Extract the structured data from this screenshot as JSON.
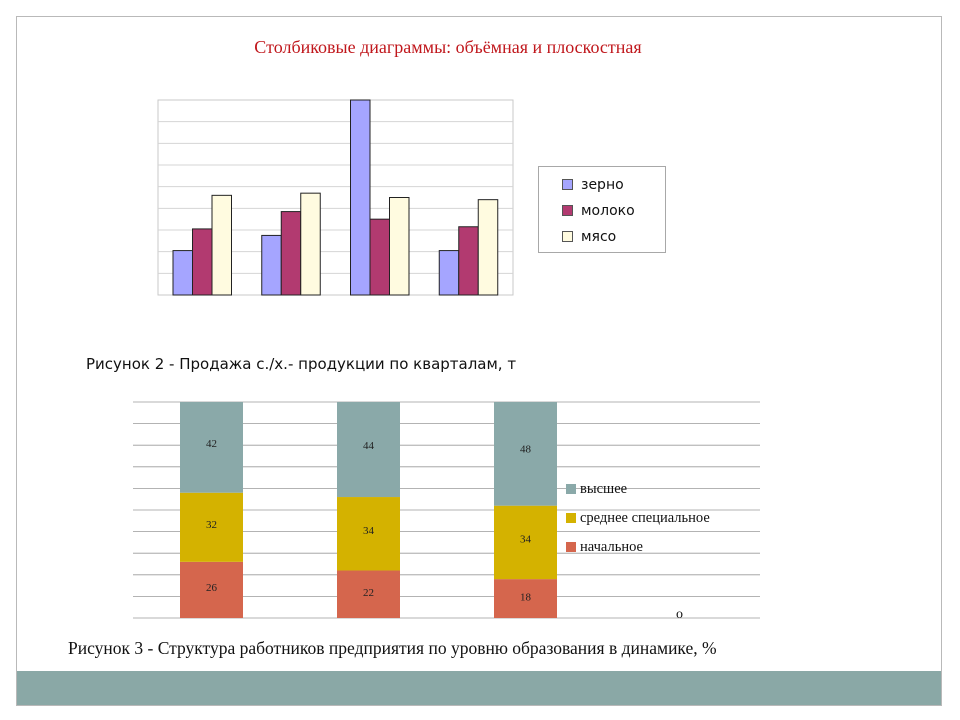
{
  "slide": {
    "title": "Столбиковые диаграммы: объёмная и плоскостная",
    "caption_2": "Рисунок 2 - Продажа с./х.- продукции по кварталам, т",
    "caption_3": "Рисунок  3 - Структура работников предприятия по уровню образования в динамике, %",
    "stray_mark": "о",
    "frame_color": "#b9b9b9",
    "footer_color": "#8aa8a6",
    "title_color": "#c0171c"
  },
  "chart_data": [
    {
      "type": "bar",
      "title": "",
      "xlabel": "",
      "ylabel": "",
      "categories": [
        "",
        "",
        "",
        ""
      ],
      "ylim": [
        0,
        90
      ],
      "grid": true,
      "legend_position": "right",
      "series": [
        {
          "name": "зерно",
          "color": "#a5a5ff",
          "values": [
            20.5,
            27.5,
            90,
            20.5
          ]
        },
        {
          "name": "молоко",
          "color": "#b23a70",
          "values": [
            30.5,
            38.5,
            35,
            31.5
          ]
        },
        {
          "name": "мясо",
          "color": "#fffbe0",
          "values": [
            46,
            47,
            45,
            44
          ]
        }
      ]
    },
    {
      "type": "bar",
      "stacked": true,
      "title": "",
      "xlabel": "",
      "ylabel": "",
      "categories": [
        "",
        "",
        ""
      ],
      "ylim": [
        0,
        100
      ],
      "grid": true,
      "legend_position": "right",
      "series": [
        {
          "name": "начальное",
          "color": "#d5664d",
          "values": [
            26,
            22,
            18
          ]
        },
        {
          "name": "среднее специальное",
          "color": "#d4b200",
          "values": [
            32,
            34,
            34
          ]
        },
        {
          "name": "высшее",
          "color": "#8aa9a9",
          "values": [
            42,
            44,
            48
          ]
        }
      ]
    }
  ]
}
